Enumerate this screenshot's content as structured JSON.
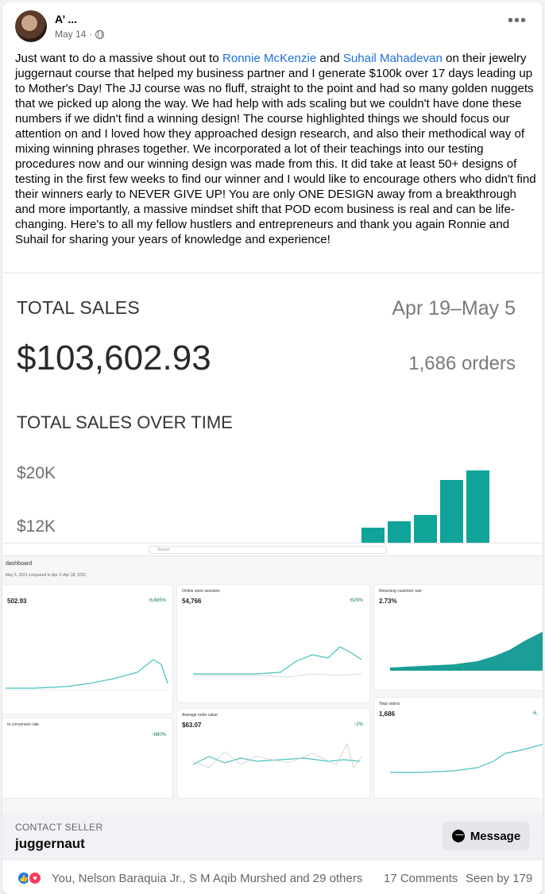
{
  "post": {
    "author": "A’ ...",
    "timestamp": "May 14",
    "text_parts": {
      "p1": "Just want to do a massive shout out to ",
      "mention1": "Ronnie McKenzie",
      "p2": " and ",
      "mention2": "Suhail Mahadevan",
      "p3": " on their jewelry juggernaut course that helped my business partner and I generate $100k over 17 days leading up to Mother's Day!  The JJ course was no fluff, straight to the point and had so many golden nuggets that we picked up along the way. We had help with ads scaling but we couldn't have done these numbers if we didn't find a winning design!  The course highlighted things we should focus our attention on and I loved how they approached design research, and also their methodical way of mixing winning phrases together. We incorporated a lot of their teachings into our testing procedures now and our winning design was made from this.  It did take at least 50+ designs of testing in the first few weeks to find our winner and I would like to encourage others who didn't find their winners early to NEVER GIVE UP! You are only ONE DESIGN away from a breakthrough and more importantly, a massive mindset shift that POD ecom business is real and can be life-changing. Here's to all my fellow hustlers and entrepreneurs and thank you again Ronnie and Suhail for sharing your years of knowledge and experience!"
    }
  },
  "image1": {
    "title": "TOTAL SALES",
    "date_range": "Apr 19–May 5",
    "value": "$103,602.93",
    "orders": "1,686 orders",
    "subtitle": "TOTAL SALES OVER TIME",
    "yticks": [
      "$20K",
      "$12K"
    ],
    "bars": [
      0.25,
      0.35,
      0.45,
      1.0,
      1.15
    ],
    "bar_color": "#10a39a"
  },
  "image2": {
    "search": "Search",
    "title": "dashboard",
    "date": "May 5, 2021   compared to Apr 2–Apr 18, 2021",
    "panels": {
      "sales": {
        "value": "502.93",
        "change": "↑6,685%"
      },
      "sessions": {
        "title": "Online store sessions",
        "value": "54,766",
        "change": "↑629%"
      },
      "returning": {
        "title": "Returning customer rate",
        "value": "2.73%"
      },
      "conversion": {
        "title": "re conversion rate",
        "change": "↑880%"
      },
      "aov": {
        "title": "Average order value",
        "value": "$63.07",
        "change": "↑2%"
      },
      "orders": {
        "title": "Total orders",
        "value": "1,686",
        "change": "↑6,"
      }
    },
    "line_color": "#47c1bf",
    "fill_color": "#1b9e97"
  },
  "contact": {
    "label": "CONTACT SELLER",
    "name": "juggernaut",
    "button": "Message"
  },
  "footer": {
    "reactions": "You, Nelson Baraquia Jr., S M Aqib Murshed and 29 others",
    "comments": "17 Comments",
    "seen": "Seen by 179"
  }
}
